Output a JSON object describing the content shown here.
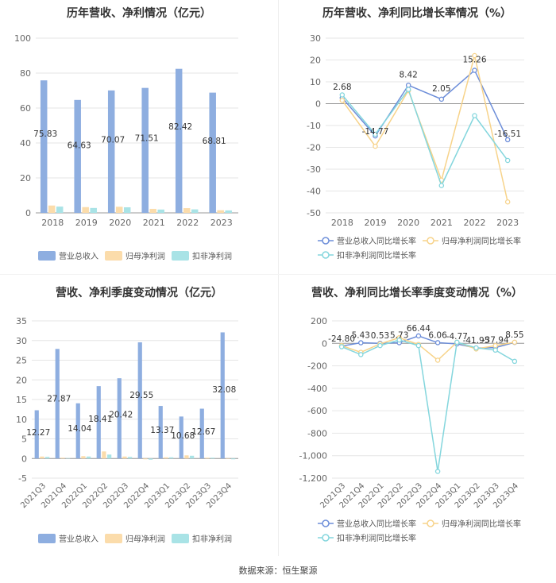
{
  "source": "数据来源：恒生聚源",
  "colors": {
    "revenue": "#8eaee0",
    "netprofit": "#fbdcab",
    "deducted": "#a9e3e6",
    "revenue_line": "#6d8ed9",
    "netprofit_line": "#f7d38a",
    "deducted_line": "#84d6dd"
  },
  "chart_data": [
    {
      "type": "bar",
      "title": "历年营收、净利情况（亿元）",
      "categories": [
        "2018",
        "2019",
        "2020",
        "2021",
        "2022",
        "2023"
      ],
      "ylim": [
        0,
        100
      ],
      "yticks": [
        "0",
        "20",
        "40",
        "60",
        "80",
        "100"
      ],
      "series": [
        {
          "name": "营业总收入",
          "values": [
            75.83,
            64.63,
            70.07,
            71.51,
            82.42,
            68.81
          ],
          "labels": [
            "75.83",
            "64.63",
            "70.07",
            "71.51",
            "82.42",
            "68.81"
          ]
        },
        {
          "name": "归母净利润",
          "values": [
            4.2,
            3.3,
            3.5,
            2.3,
            2.7,
            1.5
          ]
        },
        {
          "name": "扣非净利润",
          "values": [
            3.6,
            2.8,
            3.2,
            1.9,
            2.0,
            1.4
          ]
        }
      ],
      "legend": "bottom"
    },
    {
      "type": "line",
      "title": "历年营收、净利同比增长率情况（%）",
      "categories": [
        "2018",
        "2019",
        "2020",
        "2021",
        "2022",
        "2023"
      ],
      "ylim": [
        -50,
        30
      ],
      "yticks": [
        "-50",
        "-40",
        "-30",
        "-20",
        "-10",
        "0",
        "10",
        "20",
        "30"
      ],
      "series": [
        {
          "name": "营业总收入同比增长率",
          "values": [
            2.68,
            -14.77,
            8.42,
            2.05,
            15.26,
            -16.51
          ],
          "labels": [
            "2.68",
            "-14.77",
            "8.42",
            "2.05",
            "15.26",
            "-16.51"
          ]
        },
        {
          "name": "归母净利润同比增长率",
          "values": [
            1.5,
            -19.5,
            6.0,
            -35.0,
            22.0,
            -45.0
          ]
        },
        {
          "name": "扣非净利润同比增长率",
          "values": [
            4.0,
            -14.0,
            6.5,
            -37.5,
            -5.5,
            -26.0
          ]
        }
      ],
      "legend": "bottom"
    },
    {
      "type": "bar",
      "title": "营收、净利季度变动情况（亿元）",
      "categories": [
        "2021Q3",
        "2021Q4",
        "2022Q1",
        "2022Q2",
        "2022Q3",
        "2022Q4",
        "2023Q1",
        "2023Q2",
        "2023Q3",
        "2023Q4"
      ],
      "ylim": [
        -5,
        35
      ],
      "yticks": [
        "-5",
        "0",
        "5",
        "10",
        "15",
        "20",
        "25",
        "30",
        "35"
      ],
      "series": [
        {
          "name": "营业总收入",
          "values": [
            12.27,
            27.87,
            14.04,
            18.41,
            20.42,
            29.55,
            13.37,
            10.68,
            12.67,
            32.08
          ],
          "labels": [
            "12.27",
            "27.87",
            "14.04",
            "18.41",
            "20.42",
            "29.55",
            "13.37",
            "10.68",
            "12.67",
            "32.08"
          ]
        },
        {
          "name": "归母净利润",
          "values": [
            0.5,
            0.2,
            0.6,
            1.8,
            0.5,
            -0.2,
            0.3,
            0.8,
            0.2,
            -0.1
          ]
        },
        {
          "name": "扣非净利润",
          "values": [
            0.4,
            0.1,
            0.5,
            1.0,
            0.4,
            -0.3,
            0.3,
            0.7,
            0.2,
            -0.2
          ]
        }
      ],
      "legend": "bottom"
    },
    {
      "type": "line",
      "title": "营收、净利同比增长率季度变动情况（%）",
      "categories": [
        "2021Q3",
        "2021Q4",
        "2022Q1",
        "2022Q2",
        "2022Q3",
        "2022Q4",
        "2023Q1",
        "2023Q2",
        "2023Q3",
        "2023Q4"
      ],
      "ylim": [
        -1200,
        200
      ],
      "yticks": [
        "-1,200",
        "-1,000",
        "-800",
        "-600",
        "-400",
        "-200",
        "0",
        "200"
      ],
      "series": [
        {
          "name": "营业总收入同比增长率",
          "values": [
            -24.8,
            5.43,
            0.53,
            5.73,
            66.44,
            6.06,
            -4.77,
            -41.95,
            -37.94,
            8.55
          ],
          "labels": [
            "-24.80",
            "5.43",
            "0.53",
            "5.73",
            "66.44",
            "6.06",
            "-4.77",
            "-41.95",
            "-37.94",
            "8.55"
          ]
        },
        {
          "name": "归母净利润同比增长率",
          "values": [
            -20,
            -80,
            -5,
            50,
            -10,
            -150,
            10,
            -50,
            -20,
            10
          ]
        },
        {
          "name": "扣非净利润同比增长率",
          "values": [
            -30,
            -100,
            -20,
            30,
            -20,
            -1140,
            10,
            -40,
            -60,
            -160
          ]
        }
      ],
      "legend": "bottom"
    }
  ]
}
